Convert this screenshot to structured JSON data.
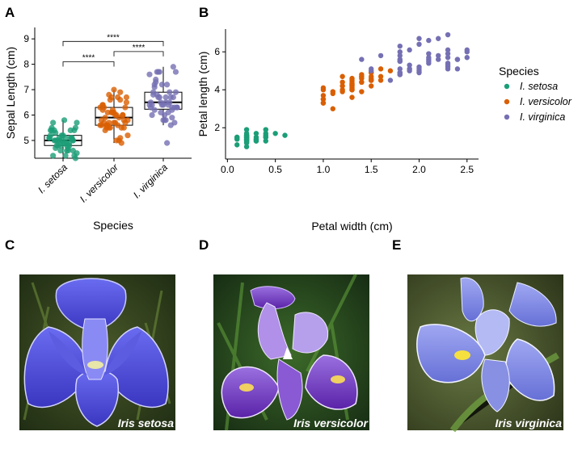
{
  "panels": {
    "A": "A",
    "B": "B",
    "C": "C",
    "D": "D",
    "E": "E"
  },
  "chart_data": [
    {
      "type": "box",
      "panel": "A",
      "xlabel": "Species",
      "ylabel": "Sepal Length (cm)",
      "ylim": [
        4.3,
        9.45
      ],
      "yticks": [
        5,
        6,
        7,
        8,
        9
      ],
      "categories": [
        "I. setosa",
        "I. versicolor",
        "I. virginica"
      ],
      "colors": [
        "#1b9e77",
        "#d95f02",
        "#7570b3"
      ],
      "boxes": [
        {
          "min": 4.3,
          "q1": 4.8,
          "median": 5.0,
          "q3": 5.2,
          "max": 5.8
        },
        {
          "min": 4.9,
          "q1": 5.6,
          "median": 5.9,
          "q3": 6.3,
          "max": 7.0
        },
        {
          "min": 5.6,
          "q1": 6.23,
          "median": 6.5,
          "q3": 6.9,
          "max": 7.9
        }
      ],
      "points": [
        [
          5.1,
          4.9,
          4.7,
          4.6,
          5.0,
          5.4,
          4.6,
          5.0,
          4.4,
          4.9,
          5.4,
          4.8,
          4.8,
          4.3,
          5.8,
          5.7,
          5.4,
          5.1,
          5.7,
          5.1,
          5.4,
          5.1,
          4.6,
          5.1,
          4.8,
          5.0,
          5.0,
          5.2,
          5.2,
          4.7,
          4.8,
          5.4,
          5.2,
          5.5,
          4.9,
          5.0,
          5.5,
          4.9,
          4.4,
          5.1,
          5.0,
          4.5,
          4.4,
          5.0,
          5.1,
          4.8,
          5.1,
          4.6,
          5.3,
          5.0
        ],
        [
          7.0,
          6.4,
          6.9,
          5.5,
          6.5,
          5.7,
          6.3,
          4.9,
          6.6,
          5.2,
          5.0,
          5.9,
          6.0,
          6.1,
          5.6,
          6.7,
          5.6,
          5.8,
          6.2,
          5.6,
          5.9,
          6.1,
          6.3,
          6.1,
          6.4,
          6.6,
          6.8,
          6.7,
          6.0,
          5.7,
          5.5,
          5.5,
          5.8,
          6.0,
          5.4,
          6.0,
          6.7,
          6.3,
          5.6,
          5.5,
          5.5,
          6.1,
          5.8,
          5.0,
          5.6,
          5.7,
          5.7,
          6.2,
          5.1,
          5.7
        ],
        [
          6.3,
          5.8,
          7.1,
          6.3,
          6.5,
          7.6,
          4.9,
          7.3,
          6.7,
          7.2,
          6.5,
          6.4,
          6.8,
          5.7,
          5.8,
          6.4,
          6.5,
          7.7,
          7.7,
          6.0,
          6.9,
          5.6,
          7.7,
          6.3,
          6.7,
          7.2,
          6.2,
          6.1,
          6.4,
          7.2,
          7.4,
          7.9,
          6.4,
          6.3,
          6.1,
          7.7,
          6.3,
          6.4,
          6.0,
          6.9,
          6.7,
          6.9,
          5.8,
          6.8,
          6.7,
          6.7,
          6.3,
          6.5,
          6.2,
          5.9
        ]
      ],
      "comparisons": [
        {
          "from": 0,
          "to": 1,
          "y": 8.1,
          "label": "****"
        },
        {
          "from": 1,
          "to": 2,
          "y": 8.5,
          "label": "****"
        },
        {
          "from": 0,
          "to": 2,
          "y": 8.9,
          "label": "****"
        }
      ]
    },
    {
      "type": "scatter",
      "panel": "B",
      "xlabel": "Petal width (cm)",
      "ylabel": "Petal length (cm)",
      "xlim": [
        -0.02,
        2.62
      ],
      "ylim": [
        0.35,
        7.2
      ],
      "xticks": [
        0.0,
        0.5,
        1.0,
        1.5,
        2.0,
        2.5
      ],
      "xtick_labels": [
        "0.0",
        "0.5",
        "1.0",
        "1.5",
        "2.0",
        "2.5"
      ],
      "yticks": [
        2,
        4,
        6
      ],
      "legend_title": "Species",
      "legend_position": "right",
      "series": [
        {
          "name": "I. setosa",
          "color": "#1b9e77",
          "x": [
            0.2,
            0.2,
            0.2,
            0.2,
            0.2,
            0.4,
            0.3,
            0.2,
            0.2,
            0.1,
            0.2,
            0.2,
            0.1,
            0.1,
            0.2,
            0.4,
            0.4,
            0.3,
            0.3,
            0.3,
            0.2,
            0.4,
            0.2,
            0.5,
            0.2,
            0.2,
            0.4,
            0.2,
            0.2,
            0.2,
            0.2,
            0.4,
            0.1,
            0.2,
            0.2,
            0.2,
            0.2,
            0.1,
            0.2,
            0.2,
            0.3,
            0.3,
            0.2,
            0.6,
            0.4,
            0.3,
            0.2,
            0.2,
            0.2,
            0.2
          ],
          "y": [
            1.4,
            1.4,
            1.3,
            1.5,
            1.4,
            1.7,
            1.4,
            1.5,
            1.4,
            1.5,
            1.5,
            1.6,
            1.4,
            1.1,
            1.2,
            1.5,
            1.3,
            1.4,
            1.7,
            1.5,
            1.7,
            1.5,
            1.0,
            1.7,
            1.9,
            1.6,
            1.6,
            1.5,
            1.4,
            1.6,
            1.6,
            1.5,
            1.5,
            1.4,
            1.5,
            1.2,
            1.3,
            1.4,
            1.3,
            1.5,
            1.3,
            1.3,
            1.3,
            1.6,
            1.9,
            1.4,
            1.6,
            1.4,
            1.5,
            1.4
          ]
        },
        {
          "name": "I. versicolor",
          "color": "#d95f02",
          "x": [
            1.4,
            1.5,
            1.5,
            1.3,
            1.5,
            1.3,
            1.6,
            1.0,
            1.3,
            1.4,
            1.0,
            1.5,
            1.0,
            1.4,
            1.3,
            1.4,
            1.5,
            1.0,
            1.5,
            1.1,
            1.8,
            1.3,
            1.5,
            1.2,
            1.3,
            1.4,
            1.4,
            1.7,
            1.5,
            1.0,
            1.1,
            1.0,
            1.2,
            1.6,
            1.5,
            1.6,
            1.5,
            1.3,
            1.3,
            1.3,
            1.2,
            1.4,
            1.2,
            1.0,
            1.3,
            1.2,
            1.3,
            1.3,
            1.1,
            1.3
          ],
          "y": [
            4.7,
            4.5,
            4.9,
            4.0,
            4.6,
            4.5,
            4.7,
            3.3,
            4.6,
            3.9,
            3.5,
            4.2,
            4.0,
            4.7,
            3.6,
            4.4,
            4.5,
            4.1,
            4.5,
            3.9,
            4.8,
            4.0,
            4.9,
            4.7,
            4.3,
            4.4,
            4.8,
            5.0,
            4.5,
            3.5,
            3.8,
            3.7,
            3.9,
            5.1,
            4.5,
            4.5,
            4.7,
            4.4,
            4.1,
            4.0,
            4.4,
            4.6,
            4.0,
            3.3,
            4.2,
            4.2,
            4.2,
            4.3,
            3.0,
            4.1
          ]
        },
        {
          "name": "I. virginica",
          "color": "#7570b3",
          "x": [
            2.5,
            1.9,
            2.1,
            1.8,
            2.2,
            2.1,
            1.7,
            1.8,
            1.8,
            2.5,
            2.0,
            1.9,
            2.1,
            2.0,
            2.4,
            2.3,
            1.8,
            2.2,
            2.3,
            1.5,
            2.3,
            2.0,
            2.0,
            1.8,
            2.1,
            1.8,
            1.8,
            1.8,
            2.1,
            1.6,
            1.9,
            2.0,
            2.2,
            1.5,
            1.4,
            2.3,
            2.4,
            1.8,
            1.8,
            2.1,
            2.4,
            2.3,
            1.9,
            2.3,
            2.5,
            2.3,
            1.9,
            2.0,
            2.3,
            1.8
          ],
          "y": [
            6.0,
            5.1,
            5.9,
            5.6,
            5.8,
            6.6,
            4.5,
            6.3,
            5.8,
            6.1,
            5.1,
            5.3,
            5.5,
            5.0,
            5.1,
            5.3,
            5.5,
            6.7,
            6.9,
            5.0,
            5.7,
            4.9,
            6.7,
            4.9,
            5.7,
            6.0,
            4.8,
            4.9,
            5.6,
            5.8,
            6.1,
            6.4,
            5.6,
            5.1,
            5.6,
            6.1,
            5.6,
            5.5,
            4.8,
            5.4,
            5.6,
            5.1,
            5.1,
            5.9,
            5.7,
            5.2,
            5.0,
            5.2,
            5.4,
            5.1
          ]
        }
      ]
    }
  ],
  "photos": [
    {
      "caption": "Iris setosa"
    },
    {
      "caption": "Iris versicolor"
    },
    {
      "caption": "Iris virginica"
    }
  ]
}
